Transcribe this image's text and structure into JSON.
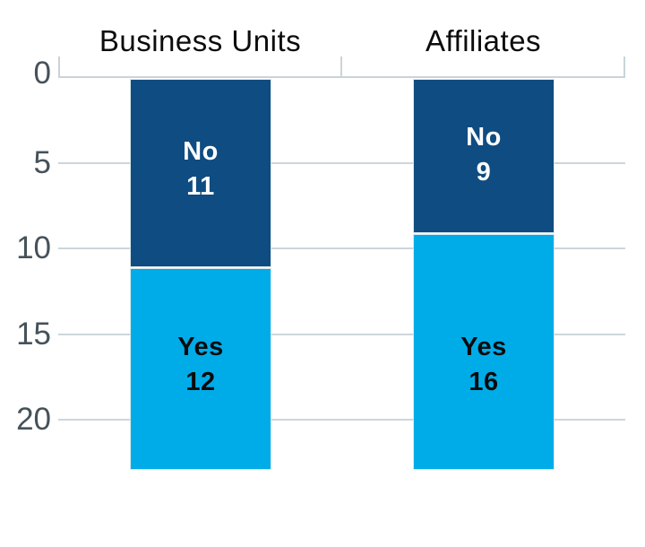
{
  "chart_data": {
    "type": "bar",
    "variant": "stacked-column",
    "orientation": "vertical",
    "categories": [
      "Business Units",
      "Affiliates"
    ],
    "series": [
      {
        "name": "No",
        "values": [
          11,
          9
        ],
        "color": "#0f4c81",
        "label_text_color": "#ffffff"
      },
      {
        "name": "Yes",
        "values": [
          12,
          16
        ],
        "color": "#00ace8",
        "label_text_color": "#0b0b0b"
      }
    ],
    "y_axis": {
      "tick_labels": [
        "0",
        "5",
        "10",
        "15",
        "20"
      ],
      "tick_values": [
        0,
        5,
        10,
        15,
        20
      ],
      "direction": "downward (0 at top)",
      "range": [
        0,
        23
      ],
      "tick_color": "#46525a"
    },
    "grid": true,
    "gridline_color": "#ccd6db",
    "legend_position": "none (series names labeled inside segments)",
    "title": "",
    "xlabel": "",
    "ylabel": ""
  },
  "columns": [
    {
      "title": "Business Units",
      "segments": [
        {
          "name": "No",
          "value": "11"
        },
        {
          "name": "Yes",
          "value": "12"
        }
      ]
    },
    {
      "title": "Affiliates",
      "segments": [
        {
          "name": "No",
          "value": "9"
        },
        {
          "name": "Yes",
          "value": "16"
        }
      ]
    }
  ],
  "colors": {
    "background": "#ffffff",
    "dark_blue": "#0f4c81",
    "light_blue": "#00ace8",
    "axis_gray": "#c9d4d9",
    "tick_label_gray": "#46525a",
    "title_black": "#0c0c0c"
  }
}
